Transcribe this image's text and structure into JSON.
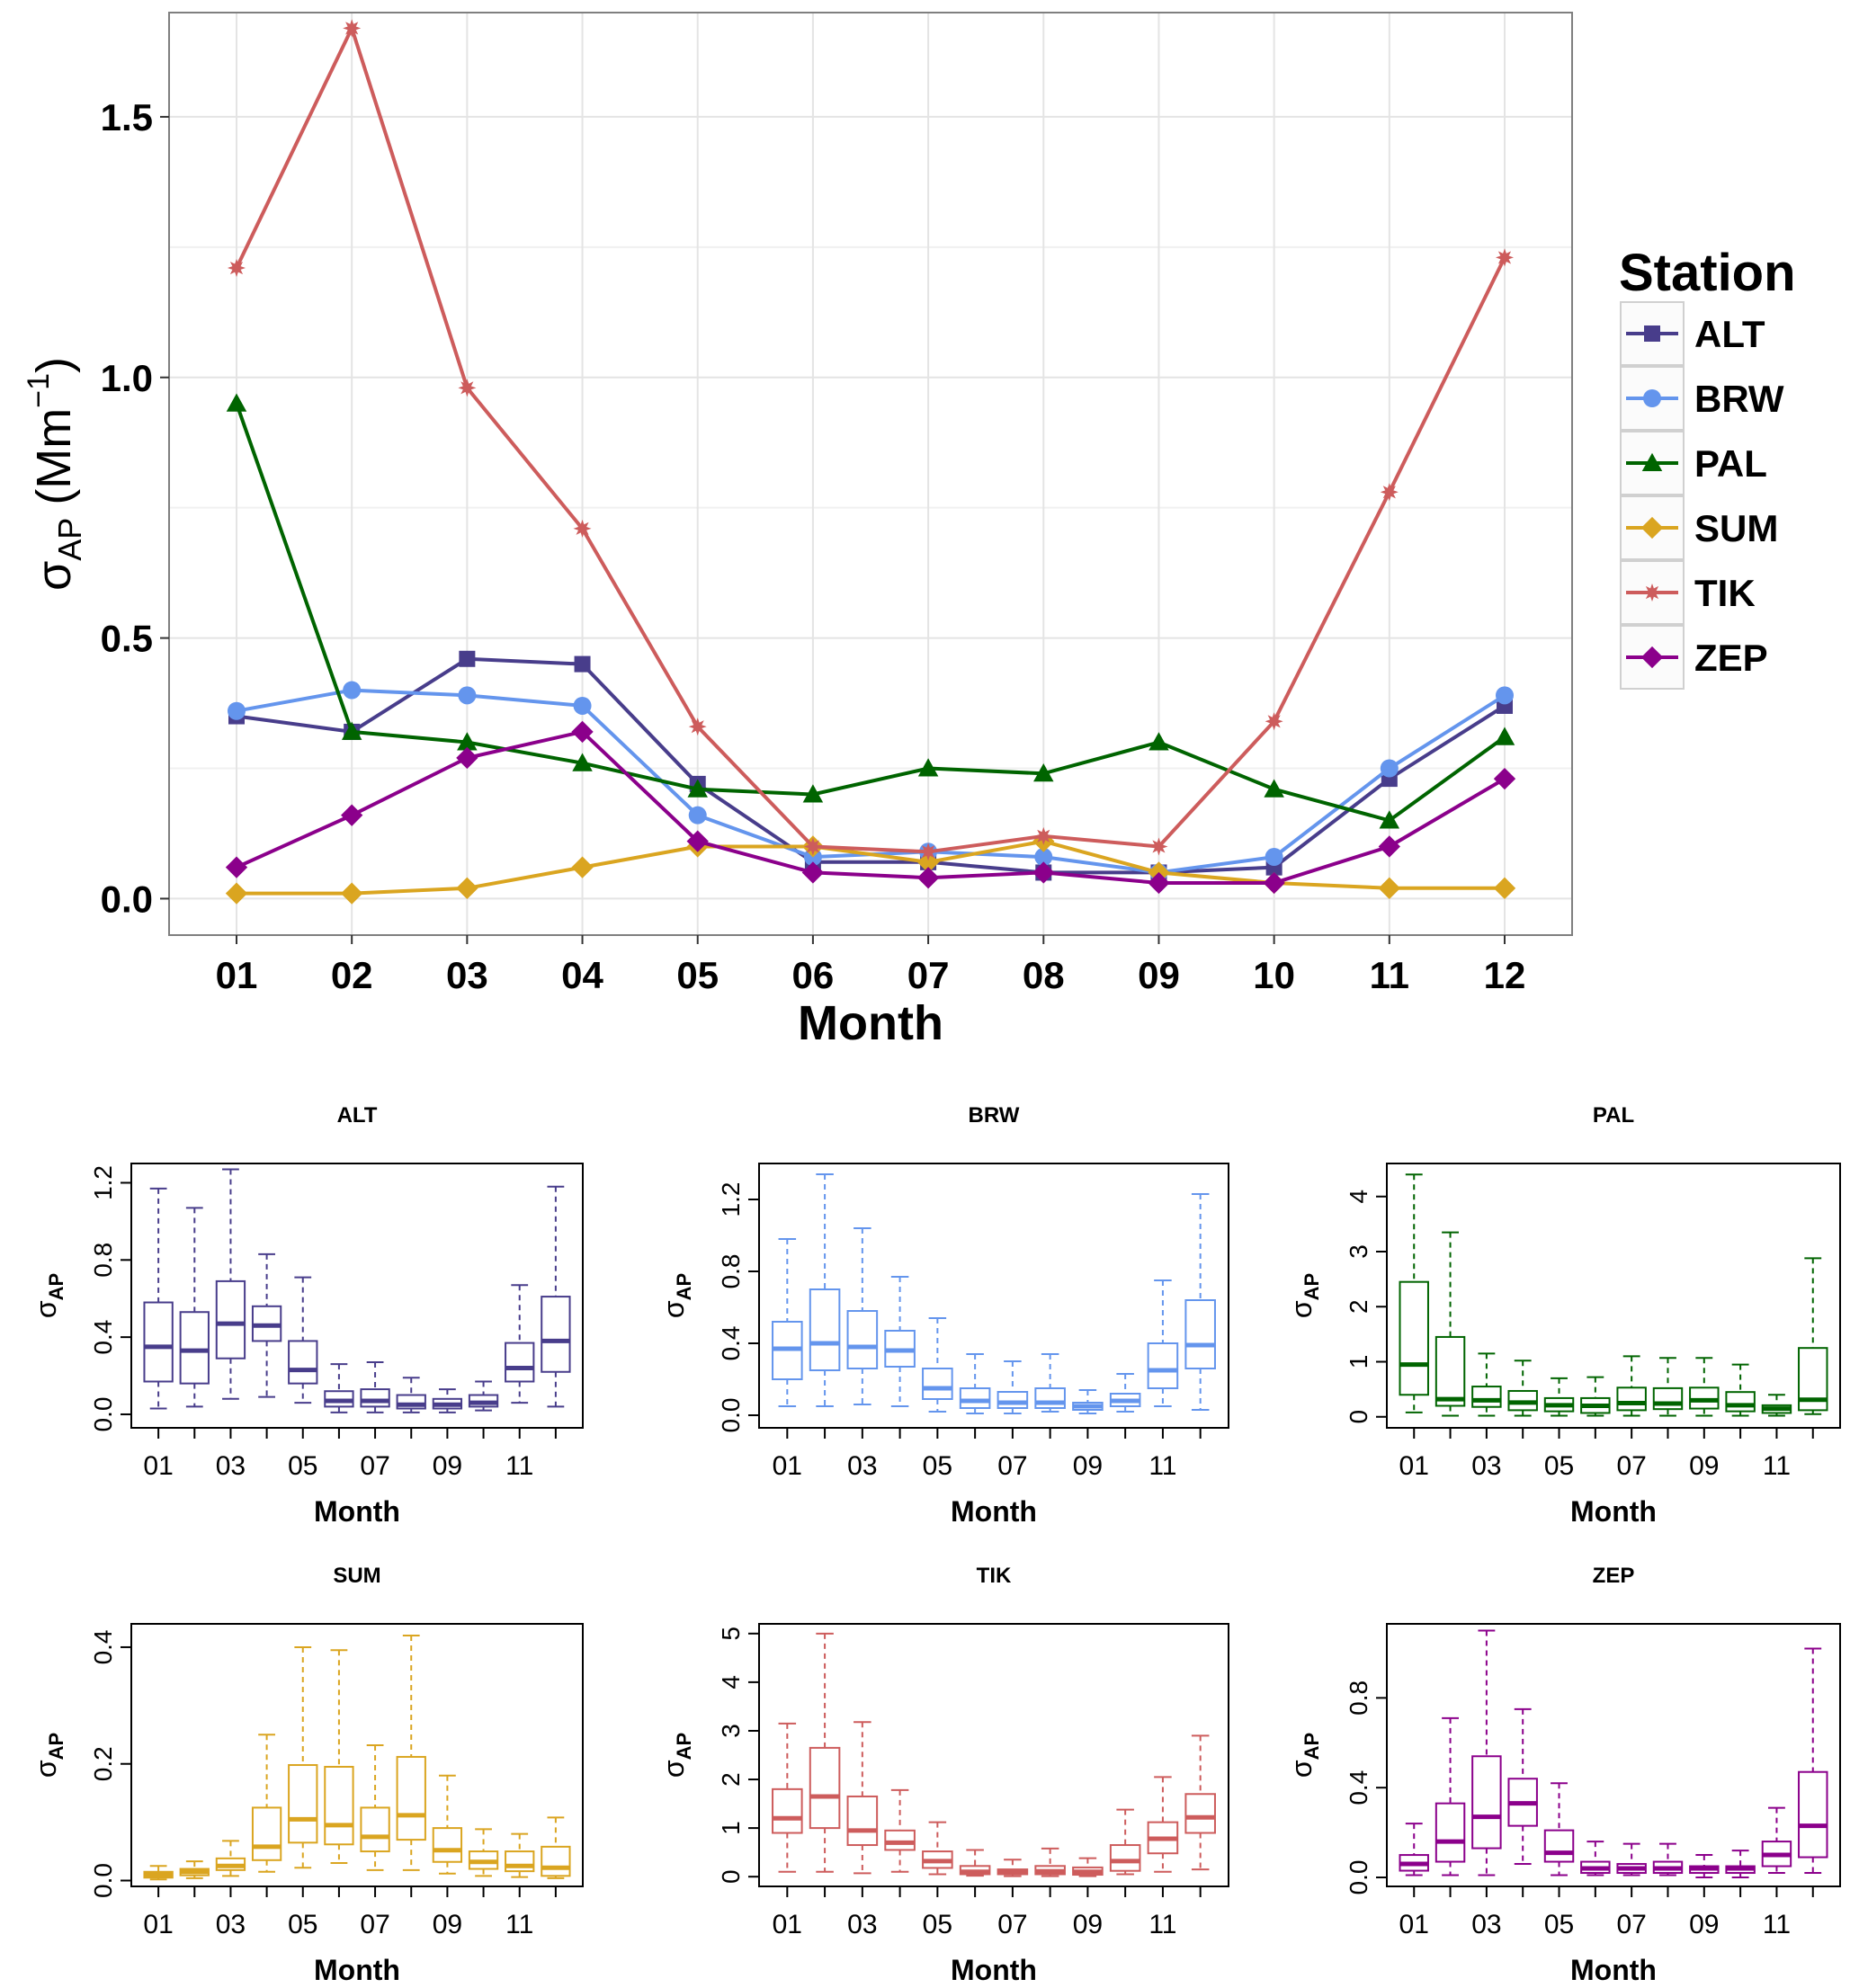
{
  "colors": {
    "ALT": "#483D8B",
    "BRW": "#6495ED",
    "PAL": "#006400",
    "SUM": "#DAA520",
    "TIK": "#CD5C5C",
    "ZEP": "#8B008B"
  },
  "chart_data": [
    {
      "type": "line",
      "title": "",
      "xlabel": "Month",
      "ylabel": "σAP (Mm−1)",
      "ylabel_parts": {
        "sigma": "σ",
        "sub": "AP",
        "unit_open": "(Mm",
        "sup": "−1",
        "unit_close": ")"
      },
      "categories": [
        "01",
        "02",
        "03",
        "04",
        "05",
        "06",
        "07",
        "08",
        "09",
        "10",
        "11",
        "12"
      ],
      "ylim": [
        -0.07,
        1.7
      ],
      "yticks": [
        "0.0",
        "0.5",
        "1.0",
        "1.5"
      ],
      "grid": true,
      "legend": {
        "title": "Station",
        "position": "right"
      },
      "series": [
        {
          "name": "ALT",
          "marker": "square",
          "values": [
            0.35,
            0.32,
            0.46,
            0.45,
            0.22,
            0.07,
            0.07,
            0.05,
            0.05,
            0.06,
            0.23,
            0.37
          ]
        },
        {
          "name": "BRW",
          "marker": "circle",
          "values": [
            0.36,
            0.4,
            0.39,
            0.37,
            0.16,
            0.08,
            0.09,
            0.08,
            0.05,
            0.08,
            0.25,
            0.39
          ]
        },
        {
          "name": "PAL",
          "marker": "triangle",
          "values": [
            0.95,
            0.32,
            0.3,
            0.26,
            0.21,
            0.2,
            0.25,
            0.24,
            0.3,
            0.21,
            0.15,
            0.31
          ]
        },
        {
          "name": "SUM",
          "marker": "diamond",
          "values": [
            0.01,
            0.01,
            0.02,
            0.06,
            0.1,
            0.1,
            0.07,
            0.11,
            0.05,
            0.03,
            0.02,
            0.02
          ]
        },
        {
          "name": "TIK",
          "marker": "star",
          "values": [
            1.21,
            1.67,
            0.98,
            0.71,
            0.33,
            0.1,
            0.09,
            0.12,
            0.1,
            0.34,
            0.78,
            1.23
          ]
        },
        {
          "name": "ZEP",
          "marker": "diamond",
          "values": [
            0.06,
            0.16,
            0.27,
            0.32,
            0.11,
            0.05,
            0.04,
            0.05,
            0.03,
            0.03,
            0.1,
            0.23
          ]
        }
      ]
    },
    {
      "type": "box",
      "title": "ALT",
      "xlabel": "Month",
      "ylabel": "σAP",
      "ylabel_parts": {
        "sigma": "σ",
        "sub": "AP"
      },
      "ylim": [
        -0.07,
        1.3
      ],
      "yticks": [
        0,
        0.4,
        0.8,
        1.2
      ],
      "ytick_labels": [
        "0.0",
        "0.4",
        "0.8",
        "1.2"
      ],
      "xtick_labels": [
        "01",
        "03",
        "05",
        "07",
        "09",
        "11"
      ],
      "boxes": [
        {
          "month": "01",
          "lower": 0.03,
          "q1": 0.17,
          "median": 0.35,
          "q3": 0.58,
          "upper": 1.17
        },
        {
          "month": "02",
          "lower": 0.04,
          "q1": 0.16,
          "median": 0.33,
          "q3": 0.53,
          "upper": 1.07
        },
        {
          "month": "03",
          "lower": 0.08,
          "q1": 0.29,
          "median": 0.47,
          "q3": 0.69,
          "upper": 1.27
        },
        {
          "month": "04",
          "lower": 0.09,
          "q1": 0.38,
          "median": 0.46,
          "q3": 0.56,
          "upper": 0.83
        },
        {
          "month": "05",
          "lower": 0.06,
          "q1": 0.16,
          "median": 0.23,
          "q3": 0.38,
          "upper": 0.71
        },
        {
          "month": "06",
          "lower": 0.01,
          "q1": 0.04,
          "median": 0.07,
          "q3": 0.12,
          "upper": 0.26
        },
        {
          "month": "07",
          "lower": 0.01,
          "q1": 0.04,
          "median": 0.07,
          "q3": 0.13,
          "upper": 0.27
        },
        {
          "month": "08",
          "lower": 0.01,
          "q1": 0.03,
          "median": 0.05,
          "q3": 0.1,
          "upper": 0.19
        },
        {
          "month": "09",
          "lower": 0.01,
          "q1": 0.03,
          "median": 0.05,
          "q3": 0.08,
          "upper": 0.13
        },
        {
          "month": "10",
          "lower": 0.02,
          "q1": 0.04,
          "median": 0.06,
          "q3": 0.1,
          "upper": 0.17
        },
        {
          "month": "11",
          "lower": 0.06,
          "q1": 0.17,
          "median": 0.24,
          "q3": 0.37,
          "upper": 0.67
        },
        {
          "month": "12",
          "lower": 0.04,
          "q1": 0.22,
          "median": 0.38,
          "q3": 0.61,
          "upper": 1.18
        }
      ]
    },
    {
      "type": "box",
      "title": "BRW",
      "xlabel": "Month",
      "ylabel": "σAP",
      "ylabel_parts": {
        "sigma": "σ",
        "sub": "AP"
      },
      "ylim": [
        -0.07,
        1.4
      ],
      "yticks": [
        0,
        0.4,
        0.8,
        1.2
      ],
      "ytick_labels": [
        "0.0",
        "0.4",
        "0.8",
        "1.2"
      ],
      "xtick_labels": [
        "01",
        "03",
        "05",
        "07",
        "09",
        "11"
      ],
      "boxes": [
        {
          "month": "01",
          "lower": 0.05,
          "q1": 0.2,
          "median": 0.37,
          "q3": 0.52,
          "upper": 0.98
        },
        {
          "month": "02",
          "lower": 0.05,
          "q1": 0.25,
          "median": 0.4,
          "q3": 0.7,
          "upper": 1.34
        },
        {
          "month": "03",
          "lower": 0.06,
          "q1": 0.26,
          "median": 0.38,
          "q3": 0.58,
          "upper": 1.04
        },
        {
          "month": "04",
          "lower": 0.05,
          "q1": 0.27,
          "median": 0.36,
          "q3": 0.47,
          "upper": 0.77
        },
        {
          "month": "05",
          "lower": 0.02,
          "q1": 0.09,
          "median": 0.15,
          "q3": 0.26,
          "upper": 0.54
        },
        {
          "month": "06",
          "lower": 0.01,
          "q1": 0.04,
          "median": 0.08,
          "q3": 0.15,
          "upper": 0.34
        },
        {
          "month": "07",
          "lower": 0.01,
          "q1": 0.04,
          "median": 0.07,
          "q3": 0.13,
          "upper": 0.3
        },
        {
          "month": "08",
          "lower": 0.02,
          "q1": 0.04,
          "median": 0.07,
          "q3": 0.15,
          "upper": 0.34
        },
        {
          "month": "09",
          "lower": 0.01,
          "q1": 0.03,
          "median": 0.05,
          "q3": 0.07,
          "upper": 0.14
        },
        {
          "month": "10",
          "lower": 0.02,
          "q1": 0.05,
          "median": 0.08,
          "q3": 0.12,
          "upper": 0.23
        },
        {
          "month": "11",
          "lower": 0.05,
          "q1": 0.15,
          "median": 0.25,
          "q3": 0.4,
          "upper": 0.75
        },
        {
          "month": "12",
          "lower": 0.03,
          "q1": 0.26,
          "median": 0.39,
          "q3": 0.64,
          "upper": 1.23
        }
      ]
    },
    {
      "type": "box",
      "title": "PAL",
      "xlabel": "Month",
      "ylabel": "σAP",
      "ylabel_parts": {
        "sigma": "σ",
        "sub": "AP"
      },
      "ylim": [
        -0.2,
        4.6
      ],
      "yticks": [
        0,
        1,
        2,
        3,
        4
      ],
      "ytick_labels": [
        "0",
        "1",
        "2",
        "3",
        "4"
      ],
      "xtick_labels": [
        "01",
        "03",
        "05",
        "07",
        "09",
        "11"
      ],
      "boxes": [
        {
          "month": "01",
          "lower": 0.08,
          "q1": 0.4,
          "median": 0.95,
          "q3": 2.45,
          "upper": 4.4
        },
        {
          "month": "02",
          "lower": 0.02,
          "q1": 0.2,
          "median": 0.32,
          "q3": 1.45,
          "upper": 3.35
        },
        {
          "month": "03",
          "lower": 0.02,
          "q1": 0.18,
          "median": 0.3,
          "q3": 0.55,
          "upper": 1.15
        },
        {
          "month": "04",
          "lower": 0.02,
          "q1": 0.12,
          "median": 0.26,
          "q3": 0.47,
          "upper": 1.02
        },
        {
          "month": "05",
          "lower": 0.02,
          "q1": 0.1,
          "median": 0.21,
          "q3": 0.34,
          "upper": 0.7
        },
        {
          "month": "06",
          "lower": 0.02,
          "q1": 0.07,
          "median": 0.2,
          "q3": 0.34,
          "upper": 0.72
        },
        {
          "month": "07",
          "lower": 0.02,
          "q1": 0.12,
          "median": 0.25,
          "q3": 0.53,
          "upper": 1.1
        },
        {
          "month": "08",
          "lower": 0.02,
          "q1": 0.14,
          "median": 0.24,
          "q3": 0.52,
          "upper": 1.07
        },
        {
          "month": "09",
          "lower": 0.02,
          "q1": 0.15,
          "median": 0.3,
          "q3": 0.53,
          "upper": 1.07
        },
        {
          "month": "10",
          "lower": 0.02,
          "q1": 0.1,
          "median": 0.21,
          "q3": 0.45,
          "upper": 0.95
        },
        {
          "month": "11",
          "lower": 0.02,
          "q1": 0.07,
          "median": 0.15,
          "q3": 0.21,
          "upper": 0.4
        },
        {
          "month": "12",
          "lower": 0.05,
          "q1": 0.12,
          "median": 0.31,
          "q3": 1.25,
          "upper": 2.88
        }
      ]
    },
    {
      "type": "box",
      "title": "SUM",
      "xlabel": "Month",
      "ylabel": "σAP",
      "ylabel_parts": {
        "sigma": "σ",
        "sub": "AP"
      },
      "ylim": [
        -0.01,
        0.44
      ],
      "yticks": [
        0,
        0.2,
        0.4
      ],
      "ytick_labels": [
        "0.0",
        "0.2",
        "0.4"
      ],
      "xtick_labels": [
        "01",
        "03",
        "05",
        "07",
        "09",
        "11"
      ],
      "boxes": [
        {
          "month": "01",
          "lower": 0.002,
          "q1": 0.005,
          "median": 0.01,
          "q3": 0.015,
          "upper": 0.025
        },
        {
          "month": "02",
          "lower": 0.004,
          "q1": 0.009,
          "median": 0.015,
          "q3": 0.02,
          "upper": 0.033
        },
        {
          "month": "03",
          "lower": 0.008,
          "q1": 0.018,
          "median": 0.025,
          "q3": 0.038,
          "upper": 0.068
        },
        {
          "month": "04",
          "lower": 0.015,
          "q1": 0.035,
          "median": 0.058,
          "q3": 0.125,
          "upper": 0.25
        },
        {
          "month": "05",
          "lower": 0.022,
          "q1": 0.065,
          "median": 0.105,
          "q3": 0.198,
          "upper": 0.4
        },
        {
          "month": "06",
          "lower": 0.03,
          "q1": 0.062,
          "median": 0.095,
          "q3": 0.195,
          "upper": 0.395
        },
        {
          "month": "07",
          "lower": 0.018,
          "q1": 0.05,
          "median": 0.075,
          "q3": 0.125,
          "upper": 0.232
        },
        {
          "month": "08",
          "lower": 0.018,
          "q1": 0.07,
          "median": 0.112,
          "q3": 0.212,
          "upper": 0.42
        },
        {
          "month": "09",
          "lower": 0.012,
          "q1": 0.032,
          "median": 0.052,
          "q3": 0.09,
          "upper": 0.18
        },
        {
          "month": "10",
          "lower": 0.008,
          "q1": 0.02,
          "median": 0.032,
          "q3": 0.05,
          "upper": 0.088
        },
        {
          "month": "11",
          "lower": 0.006,
          "q1": 0.016,
          "median": 0.025,
          "q3": 0.05,
          "upper": 0.08
        },
        {
          "month": "12",
          "lower": 0.004,
          "q1": 0.008,
          "median": 0.022,
          "q3": 0.058,
          "upper": 0.108
        }
      ]
    },
    {
      "type": "box",
      "title": "TIK",
      "xlabel": "Month",
      "ylabel": "σAP",
      "ylabel_parts": {
        "sigma": "σ",
        "sub": "AP"
      },
      "ylim": [
        -0.2,
        5.2
      ],
      "yticks": [
        0,
        1,
        2,
        3,
        4,
        5
      ],
      "ytick_labels": [
        "0",
        "1",
        "2",
        "3",
        "4",
        "5"
      ],
      "xtick_labels": [
        "01",
        "03",
        "05",
        "07",
        "09",
        "11"
      ],
      "boxes": [
        {
          "month": "01",
          "lower": 0.1,
          "q1": 0.9,
          "median": 1.2,
          "q3": 1.8,
          "upper": 3.15
        },
        {
          "month": "02",
          "lower": 0.1,
          "q1": 1.0,
          "median": 1.65,
          "q3": 2.65,
          "upper": 5.0
        },
        {
          "month": "03",
          "lower": 0.07,
          "q1": 0.65,
          "median": 0.95,
          "q3": 1.65,
          "upper": 3.18
        },
        {
          "month": "04",
          "lower": 0.1,
          "q1": 0.55,
          "median": 0.7,
          "q3": 0.95,
          "upper": 1.78
        },
        {
          "month": "05",
          "lower": 0.05,
          "q1": 0.18,
          "median": 0.32,
          "q3": 0.52,
          "upper": 1.12
        },
        {
          "month": "06",
          "lower": 0.02,
          "q1": 0.05,
          "median": 0.1,
          "q3": 0.22,
          "upper": 0.55
        },
        {
          "month": "07",
          "lower": 0.01,
          "q1": 0.05,
          "median": 0.09,
          "q3": 0.15,
          "upper": 0.35
        },
        {
          "month": "08",
          "lower": 0.01,
          "q1": 0.05,
          "median": 0.11,
          "q3": 0.22,
          "upper": 0.58
        },
        {
          "month": "09",
          "lower": 0.01,
          "q1": 0.04,
          "median": 0.1,
          "q3": 0.19,
          "upper": 0.38
        },
        {
          "month": "10",
          "lower": 0.05,
          "q1": 0.12,
          "median": 0.32,
          "q3": 0.65,
          "upper": 1.38
        },
        {
          "month": "11",
          "lower": 0.1,
          "q1": 0.48,
          "median": 0.78,
          "q3": 1.12,
          "upper": 2.05
        },
        {
          "month": "12",
          "lower": 0.15,
          "q1": 0.9,
          "median": 1.22,
          "q3": 1.7,
          "upper": 2.9
        }
      ]
    },
    {
      "type": "box",
      "title": "ZEP",
      "xlabel": "Month",
      "ylabel": "σAP",
      "ylabel_parts": {
        "sigma": "σ",
        "sub": "AP"
      },
      "ylim": [
        -0.04,
        1.13
      ],
      "yticks": [
        0,
        0.4,
        0.8
      ],
      "ytick_labels": [
        "0.0",
        "0.4",
        "0.8"
      ],
      "xtick_labels": [
        "01",
        "03",
        "05",
        "07",
        "09",
        "11"
      ],
      "boxes": [
        {
          "month": "01",
          "lower": 0.01,
          "q1": 0.03,
          "median": 0.06,
          "q3": 0.1,
          "upper": 0.24
        },
        {
          "month": "02",
          "lower": 0.01,
          "q1": 0.07,
          "median": 0.16,
          "q3": 0.33,
          "upper": 0.71
        },
        {
          "month": "03",
          "lower": 0.01,
          "q1": 0.13,
          "median": 0.27,
          "q3": 0.54,
          "upper": 1.1
        },
        {
          "month": "04",
          "lower": 0.06,
          "q1": 0.23,
          "median": 0.33,
          "q3": 0.44,
          "upper": 0.75
        },
        {
          "month": "05",
          "lower": 0.01,
          "q1": 0.07,
          "median": 0.11,
          "q3": 0.21,
          "upper": 0.42
        },
        {
          "month": "06",
          "lower": 0.01,
          "q1": 0.02,
          "median": 0.04,
          "q3": 0.07,
          "upper": 0.16
        },
        {
          "month": "07",
          "lower": 0.01,
          "q1": 0.02,
          "median": 0.04,
          "q3": 0.06,
          "upper": 0.15
        },
        {
          "month": "08",
          "lower": 0.01,
          "q1": 0.02,
          "median": 0.04,
          "q3": 0.07,
          "upper": 0.15
        },
        {
          "month": "09",
          "lower": 0.0,
          "q1": 0.02,
          "median": 0.04,
          "q3": 0.05,
          "upper": 0.1
        },
        {
          "month": "10",
          "lower": 0.0,
          "q1": 0.02,
          "median": 0.04,
          "q3": 0.05,
          "upper": 0.12
        },
        {
          "month": "11",
          "lower": 0.02,
          "q1": 0.05,
          "median": 0.1,
          "q3": 0.16,
          "upper": 0.31
        },
        {
          "month": "12",
          "lower": 0.02,
          "q1": 0.09,
          "median": 0.23,
          "q3": 0.47,
          "upper": 1.02
        }
      ]
    }
  ]
}
